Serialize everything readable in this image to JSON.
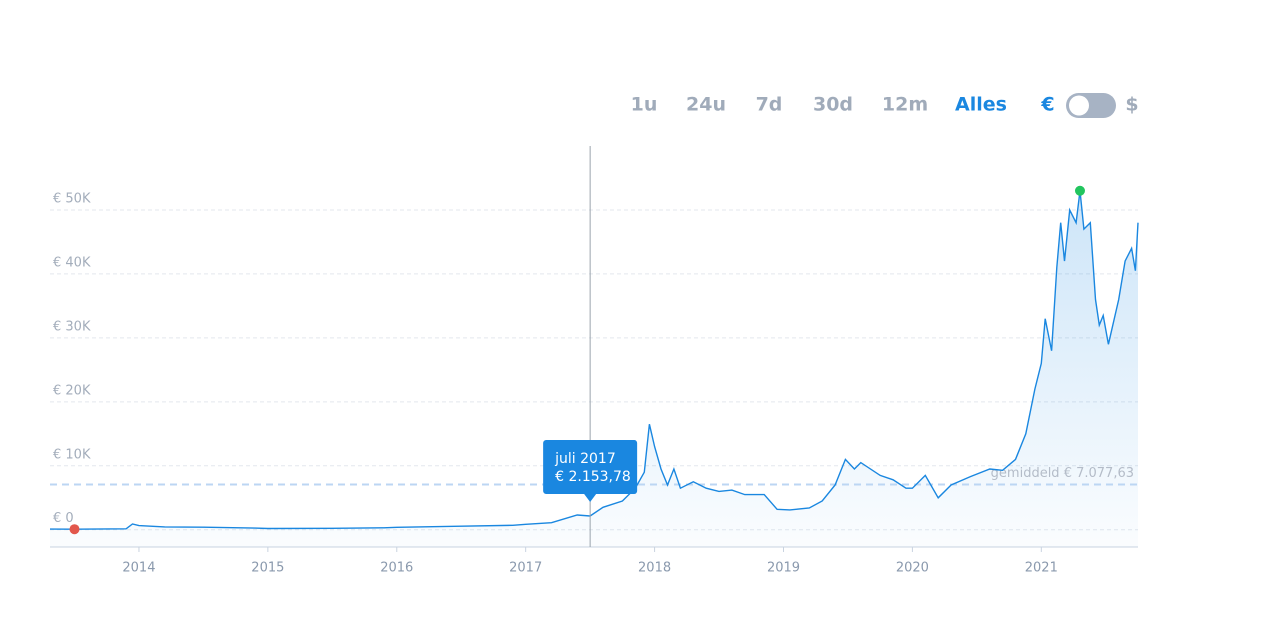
{
  "chart_data": {
    "type": "line",
    "controls": {
      "ranges": [
        "1u",
        "24u",
        "7d",
        "30d",
        "12m",
        "Alles"
      ],
      "active_range": 5,
      "currencies": [
        "€",
        "$"
      ],
      "active_currency": 0
    },
    "series": [
      {
        "color": "#1a87e0",
        "x": [
          2013.31,
          2013.5,
          2013.9,
          2013.95,
          2014.0,
          2014.2,
          2014.5,
          2014.9,
          2015.0,
          2015.5,
          2015.9,
          2016.0,
          2016.5,
          2016.9,
          2017.0,
          2017.2,
          2017.4,
          2017.5,
          2017.6,
          2017.75,
          2017.85,
          2017.92,
          2017.96,
          2018.0,
          2018.05,
          2018.1,
          2018.15,
          2018.2,
          2018.3,
          2018.4,
          2018.5,
          2018.6,
          2018.7,
          2018.85,
          2018.95,
          2019.05,
          2019.2,
          2019.3,
          2019.4,
          2019.48,
          2019.55,
          2019.6,
          2019.75,
          2019.85,
          2019.95,
          2020.0,
          2020.1,
          2020.2,
          2020.3,
          2020.45,
          2020.6,
          2020.7,
          2020.8,
          2020.88,
          2020.95,
          2021.0,
          2021.03,
          2021.08,
          2021.12,
          2021.15,
          2021.18,
          2021.22,
          2021.27,
          2021.3,
          2021.33,
          2021.38,
          2021.42,
          2021.45,
          2021.48,
          2021.52,
          2021.6,
          2021.65,
          2021.7,
          2021.73,
          2021.75
        ],
        "values": [
          100,
          80,
          150,
          900,
          650,
          450,
          400,
          250,
          200,
          220,
          300,
          380,
          550,
          700,
          850,
          1100,
          2300,
          2153.78,
          3500,
          4500,
          6500,
          9000,
          16500,
          13000,
          9500,
          7000,
          9500,
          6500,
          7500,
          6500,
          6000,
          6200,
          5500,
          5500,
          3200,
          3100,
          3400,
          4500,
          7000,
          11000,
          9500,
          10500,
          8500,
          7800,
          6500,
          6500,
          8500,
          5000,
          7000,
          8300,
          9500,
          9300,
          11000,
          15000,
          22000,
          26000,
          33000,
          28000,
          41000,
          48000,
          42000,
          50000,
          48000,
          53000,
          47000,
          48000,
          36000,
          32000,
          33500,
          29000,
          36000,
          42000,
          44000,
          40500,
          48000
        ]
      }
    ],
    "markers": [
      {
        "x": 2013.5,
        "value": 80,
        "color": "#e2574c"
      },
      {
        "x": 2021.3,
        "value": 53000,
        "color": "#22c55e"
      }
    ],
    "average": {
      "value": 7077.63,
      "label": "gemiddeld € 7.077,63"
    },
    "tooltip": {
      "x": 2017.5,
      "value": 2153.78,
      "title": "juli 2017",
      "label": "€ 2.153,78"
    },
    "xlim": [
      2013.31,
      2021.75
    ],
    "xticks": [
      2014,
      2015,
      2016,
      2017,
      2018,
      2019,
      2020,
      2021
    ],
    "ylim": [
      -2700,
      60000
    ],
    "yticks": [
      {
        "value": 0,
        "label": "€ 0"
      },
      {
        "value": 10000,
        "label": "€ 10K"
      },
      {
        "value": 20000,
        "label": "€ 20K"
      },
      {
        "value": 30000,
        "label": "€ 30K"
      },
      {
        "value": 40000,
        "label": "€ 40K"
      },
      {
        "value": 50000,
        "label": "€ 50K"
      }
    ],
    "grid": true
  }
}
